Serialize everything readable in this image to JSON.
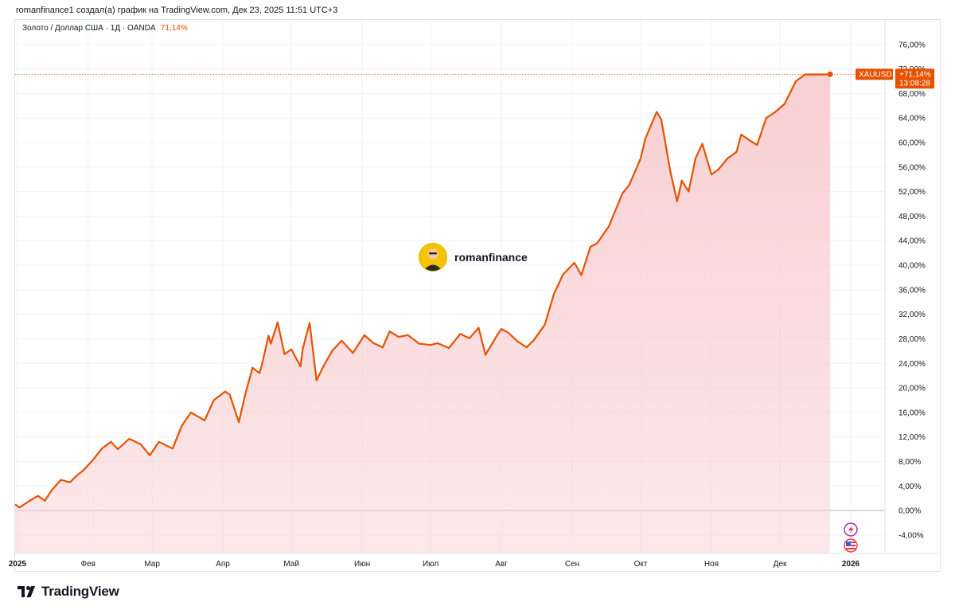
{
  "header": {
    "title": "romanfinance1 создал(а) график на TradingView.com, Дек 23, 2025 11:51 UTC+3"
  },
  "legend": {
    "label": "Золото / Доллар США · 1Д · OANDA",
    "change": "71,14%"
  },
  "watermark": {
    "text": "romanfinance"
  },
  "footer": {
    "brand": "TradingView"
  },
  "price_tag": {
    "symbol": "XAUUSD",
    "change": "+71,14%",
    "countdown": "13:08:28"
  },
  "colors": {
    "line": "#e65100",
    "fill": "#f8cdd0",
    "grid": "#f0f3fa",
    "zero_line": "#b2b5be"
  },
  "icons": [
    "lightning-event-icon",
    "us-flag-event-icon",
    "tradingview-logo-icon"
  ],
  "chart_data": {
    "type": "area",
    "title": "Золото / Доллар США · 1Д · OANDA",
    "ylim": [
      -7,
      80
    ],
    "y_ticks": [
      76,
      72,
      68,
      64,
      60,
      56,
      52,
      48,
      44,
      40,
      36,
      32,
      28,
      24,
      20,
      16,
      12,
      8,
      4,
      0,
      -4
    ],
    "y_tick_labels": [
      "76,00%",
      "72,00%",
      "68,00%",
      "64,00%",
      "60,00%",
      "56,00%",
      "52,00%",
      "48,00%",
      "44,00%",
      "40,00%",
      "36,00%",
      "32,00%",
      "28,00%",
      "24,00%",
      "20,00%",
      "16,00%",
      "12,00%",
      "8,00%",
      "4,00%",
      "0,00%",
      "-4,00%"
    ],
    "x_ticks": [
      "2025-01-01",
      "2025-02-01",
      "2025-03-01",
      "2025-04-01",
      "2025-05-01",
      "2025-06-01",
      "2025-07-01",
      "2025-08-01",
      "2025-09-01",
      "2025-10-01",
      "2025-11-01",
      "2025-12-01",
      "2026-01-01"
    ],
    "x_tick_labels": [
      "2025",
      "Фев",
      "Мар",
      "Апр",
      "Май",
      "Июн",
      "Июл",
      "Авг",
      "Сен",
      "Окт",
      "Ноя",
      "Дек",
      "2026"
    ],
    "x_range": [
      "2024-12-31",
      "2026-01-16"
    ],
    "grid": true,
    "series": [
      {
        "x": [
          "2024-12-31",
          "2025-01-02",
          "2025-01-06",
          "2025-01-10",
          "2025-01-13",
          "2025-01-16",
          "2025-01-20",
          "2025-01-24",
          "2025-01-27",
          "2025-01-30",
          "2025-02-03",
          "2025-02-07",
          "2025-02-11",
          "2025-02-14",
          "2025-02-19",
          "2025-02-24",
          "2025-02-28",
          "2025-03-04",
          "2025-03-10",
          "2025-03-14",
          "2025-03-18",
          "2025-03-24",
          "2025-03-28",
          "2025-04-02",
          "2025-04-04",
          "2025-04-08",
          "2025-04-11",
          "2025-04-14",
          "2025-04-17",
          "2025-04-18",
          "2025-04-21",
          "2025-04-22",
          "2025-04-25",
          "2025-04-28",
          "2025-05-01",
          "2025-05-05",
          "2025-05-06",
          "2025-05-09",
          "2025-05-12",
          "2025-05-15",
          "2025-05-19",
          "2025-05-23",
          "2025-05-28",
          "2025-06-02",
          "2025-06-06",
          "2025-06-10",
          "2025-06-13",
          "2025-06-17",
          "2025-06-21",
          "2025-06-26",
          "2025-07-01",
          "2025-07-04",
          "2025-07-09",
          "2025-07-14",
          "2025-07-18",
          "2025-07-22",
          "2025-07-25",
          "2025-07-30",
          "2025-08-01",
          "2025-08-04",
          "2025-08-08",
          "2025-08-12",
          "2025-08-15",
          "2025-08-20",
          "2025-08-24",
          "2025-08-28",
          "2025-09-02",
          "2025-09-05",
          "2025-09-09",
          "2025-09-12",
          "2025-09-17",
          "2025-09-23",
          "2025-09-26",
          "2025-10-01",
          "2025-10-03",
          "2025-10-08",
          "2025-10-10",
          "2025-10-14",
          "2025-10-17",
          "2025-10-19",
          "2025-10-22",
          "2025-10-25",
          "2025-10-28",
          "2025-11-01",
          "2025-11-04",
          "2025-11-08",
          "2025-11-12",
          "2025-11-14",
          "2025-11-18",
          "2025-11-21",
          "2025-11-25",
          "2025-11-29",
          "2025-12-03",
          "2025-12-08",
          "2025-12-12",
          "2025-12-16",
          "2025-12-19",
          "2025-12-22",
          "2025-12-23"
        ],
        "values": [
          1.0,
          0.5,
          1.5,
          2.4,
          1.6,
          3.3,
          5.0,
          4.6,
          5.7,
          6.6,
          8.2,
          10.1,
          11.2,
          10.0,
          11.7,
          10.8,
          9.0,
          11.2,
          10.1,
          13.8,
          16.0,
          14.7,
          18.0,
          19.4,
          18.9,
          14.4,
          19.2,
          23.3,
          22.4,
          23.6,
          28.5,
          27.2,
          30.7,
          25.5,
          26.3,
          23.5,
          26.4,
          30.6,
          21.2,
          23.5,
          26.1,
          27.7,
          25.7,
          28.6,
          27.3,
          26.6,
          29.2,
          28.3,
          28.6,
          27.2,
          27.0,
          27.3,
          26.5,
          28.8,
          28.1,
          29.8,
          25.4,
          28.5,
          29.6,
          29.0,
          27.6,
          26.6,
          27.7,
          30.3,
          35.3,
          38.5,
          40.4,
          38.4,
          43.0,
          43.6,
          46.3,
          51.7,
          53.1,
          57.4,
          60.6,
          65.0,
          63.8,
          55.3,
          50.4,
          53.8,
          52.0,
          57.4,
          59.8,
          54.8,
          55.6,
          57.4,
          58.5,
          61.3,
          60.3,
          59.6,
          64.0,
          65.0,
          66.3,
          70.0,
          71.1,
          71.1,
          71.1,
          71.1,
          71.14
        ]
      }
    ]
  }
}
